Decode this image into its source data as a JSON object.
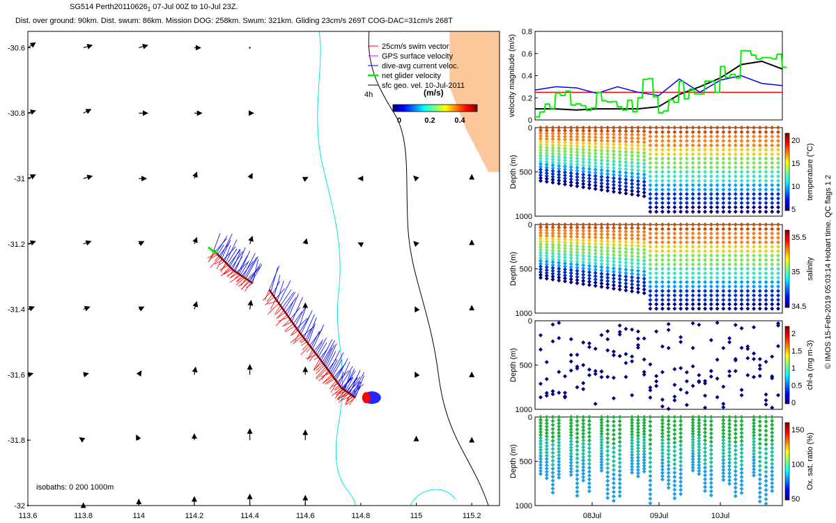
{
  "header": {
    "line1": "SG514 Perth20110626",
    "line1_sub": "1",
    "line1_rest": " 07-Jul 00Z to 10-Jul 23Z.",
    "line2": "Dist. over ground: 90km. Dist. swum: 86km. Mission DOG: 258km. Swum: 321km. Gliding 23cm/s 269T COG-DAC=31cm/s 268T"
  },
  "credit": "© IMOS 15-Feb-2019 05:03:14 Hobart time. QC flags 1  2",
  "colors": {
    "land": "#fcc89b",
    "swim": "#ff0000",
    "gps": "#ff00ff",
    "dac": "#0000ff",
    "net": "#00ee00",
    "geo": "#000000",
    "coast": "#00e5ee",
    "isobath": "#000000"
  },
  "chart_data": [
    {
      "type": "scatter",
      "panel": "map",
      "xlim": [
        113.6,
        115.3
      ],
      "ylim": [
        -32,
        -30.55
      ],
      "x_ticks": [
        "113.6",
        "113.8",
        "114",
        "114.2",
        "114.4",
        "114.6",
        "114.8",
        "115",
        "115.2"
      ],
      "x_tick_values": [
        113.6,
        113.8,
        114,
        114.2,
        114.4,
        114.6,
        114.8,
        115,
        115.2
      ],
      "y_ticks": [
        "-30.6",
        "-30.8",
        "-31",
        "-31.2",
        "-31.4",
        "-31.6",
        "-31.8",
        "-32"
      ],
      "y_tick_values": [
        -30.6,
        -30.8,
        -31,
        -31.2,
        -31.4,
        -31.6,
        -31.8,
        -32
      ],
      "legend": {
        "position": "top-right",
        "items": [
          {
            "label": "25cm/s swim vector",
            "color": "#ff0000"
          },
          {
            "label": "GPS surface velocity",
            "color": "#ff00ff"
          },
          {
            "label": "dive-avg current veloc.",
            "color": "#0000ff"
          },
          {
            "label": "net glider velocity",
            "color": "#00ee00"
          },
          {
            "label": "sfc geo. vel. 10-Jul-2011",
            "color": "#000000"
          }
        ]
      },
      "colorbar": {
        "label": "(m/s)",
        "ticks": [
          "0",
          "0.2",
          "0.4"
        ],
        "tag": "4h"
      },
      "isobath_note": "isobaths: 0   200  1000m",
      "track": [
        {
          "lon": 114.41,
          "lat": -31.32
        },
        {
          "lon": 114.34,
          "lat": -31.28
        },
        {
          "lon": 114.27,
          "lat": -31.22
        }
      ],
      "track2": [
        {
          "lon": 114.47,
          "lat": -31.34
        },
        {
          "lon": 114.57,
          "lat": -31.46
        },
        {
          "lon": 114.66,
          "lat": -31.56
        },
        {
          "lon": 114.73,
          "lat": -31.64
        },
        {
          "lon": 114.78,
          "lat": -31.67
        }
      ],
      "geo_arrows": [
        {
          "lon": 113.6,
          "lat": -30.6,
          "dx": 0.06,
          "dy": 0.04
        },
        {
          "lon": 113.8,
          "lat": -30.6,
          "dx": 0.07,
          "dy": 0.02
        },
        {
          "lon": 114.0,
          "lat": -30.6,
          "dx": 0.07,
          "dy": 0.02
        },
        {
          "lon": 114.2,
          "lat": -30.6,
          "dx": 0.05,
          "dy": 0.0
        },
        {
          "lon": 114.4,
          "lat": -30.6,
          "dx": 0.0,
          "dy": 0.0
        },
        {
          "lon": 113.6,
          "lat": -30.8,
          "dx": 0.06,
          "dy": 0.02
        },
        {
          "lon": 113.8,
          "lat": -30.8,
          "dx": 0.06,
          "dy": 0.03
        },
        {
          "lon": 114.0,
          "lat": -30.8,
          "dx": 0.07,
          "dy": 0.0
        },
        {
          "lon": 114.2,
          "lat": -30.8,
          "dx": 0.06,
          "dy": 0.0
        },
        {
          "lon": 114.4,
          "lat": -30.8,
          "dx": 0.03,
          "dy": 0.0
        },
        {
          "lon": 113.6,
          "lat": -31.0,
          "dx": 0.06,
          "dy": 0.03
        },
        {
          "lon": 113.8,
          "lat": -31.0,
          "dx": 0.07,
          "dy": 0.02
        },
        {
          "lon": 114.0,
          "lat": -31.0,
          "dx": 0.06,
          "dy": 0.0
        },
        {
          "lon": 114.2,
          "lat": -31.0,
          "dx": 0.02,
          "dy": 0.05
        },
        {
          "lon": 114.4,
          "lat": -31.0,
          "dx": 0.02,
          "dy": 0.04
        },
        {
          "lon": 114.6,
          "lat": -31.0,
          "dx": 0.02,
          "dy": 0.01
        },
        {
          "lon": 114.8,
          "lat": -31.0,
          "dx": -0.02,
          "dy": 0.0
        },
        {
          "lon": 115.0,
          "lat": -31.0,
          "dx": -0.02,
          "dy": 0.02
        },
        {
          "lon": 115.2,
          "lat": -31.0,
          "dx": 0.0,
          "dy": 0.03
        },
        {
          "lon": 113.6,
          "lat": -31.2,
          "dx": 0.06,
          "dy": 0.02
        },
        {
          "lon": 113.8,
          "lat": -31.2,
          "dx": 0.06,
          "dy": 0.02
        },
        {
          "lon": 114.0,
          "lat": -31.2,
          "dx": 0.04,
          "dy": 0.02
        },
        {
          "lon": 114.2,
          "lat": -31.2,
          "dx": 0.02,
          "dy": 0.05
        },
        {
          "lon": 114.4,
          "lat": -31.2,
          "dx": 0.02,
          "dy": 0.06
        },
        {
          "lon": 114.6,
          "lat": -31.2,
          "dx": 0.01,
          "dy": 0.04
        },
        {
          "lon": 114.8,
          "lat": -31.2,
          "dx": -0.02,
          "dy": 0.01
        },
        {
          "lon": 115.0,
          "lat": -31.2,
          "dx": -0.02,
          "dy": 0.02
        },
        {
          "lon": 115.2,
          "lat": -31.2,
          "dx": 0.0,
          "dy": 0.03
        },
        {
          "lon": 113.6,
          "lat": -31.4,
          "dx": 0.05,
          "dy": 0.02
        },
        {
          "lon": 113.8,
          "lat": -31.4,
          "dx": 0.05,
          "dy": 0.02
        },
        {
          "lon": 114.0,
          "lat": -31.4,
          "dx": 0.04,
          "dy": 0.02
        },
        {
          "lon": 114.2,
          "lat": -31.4,
          "dx": 0.02,
          "dy": 0.06
        },
        {
          "lon": 114.4,
          "lat": -31.4,
          "dx": 0.01,
          "dy": 0.07
        },
        {
          "lon": 114.6,
          "lat": -31.4,
          "dx": 0.0,
          "dy": 0.05
        },
        {
          "lon": 115.0,
          "lat": -31.4,
          "dx": -0.01,
          "dy": 0.02
        },
        {
          "lon": 115.2,
          "lat": -31.4,
          "dx": 0.0,
          "dy": 0.03
        },
        {
          "lon": 113.6,
          "lat": -31.6,
          "dx": 0.04,
          "dy": 0.01
        },
        {
          "lon": 113.8,
          "lat": -31.6,
          "dx": 0.04,
          "dy": 0.01
        },
        {
          "lon": 114.0,
          "lat": -31.6,
          "dx": 0.02,
          "dy": 0.03
        },
        {
          "lon": 114.2,
          "lat": -31.6,
          "dx": 0.01,
          "dy": 0.06
        },
        {
          "lon": 114.4,
          "lat": -31.6,
          "dx": 0.0,
          "dy": 0.08
        },
        {
          "lon": 114.6,
          "lat": -31.6,
          "dx": 0.0,
          "dy": 0.06
        },
        {
          "lon": 115.0,
          "lat": -31.6,
          "dx": -0.01,
          "dy": 0.02
        },
        {
          "lon": 115.2,
          "lat": -31.6,
          "dx": 0.0,
          "dy": 0.02
        },
        {
          "lon": 113.6,
          "lat": -31.8,
          "dx": 0.0,
          "dy": 0.0
        },
        {
          "lon": 113.8,
          "lat": -31.8,
          "dx": -0.03,
          "dy": 0.02
        },
        {
          "lon": 114.0,
          "lat": -31.8,
          "dx": -0.02,
          "dy": 0.04
        },
        {
          "lon": 114.2,
          "lat": -31.8,
          "dx": 0.0,
          "dy": 0.05
        },
        {
          "lon": 114.4,
          "lat": -31.8,
          "dx": 0.0,
          "dy": 0.09
        },
        {
          "lon": 114.6,
          "lat": -31.8,
          "dx": 0.0,
          "dy": 0.08
        },
        {
          "lon": 115.0,
          "lat": -31.8,
          "dx": 0.0,
          "dy": 0.03
        },
        {
          "lon": 115.2,
          "lat": -31.8,
          "dx": 0.0,
          "dy": 0.02
        },
        {
          "lon": 113.6,
          "lat": -32.0,
          "dx": 0.0,
          "dy": 0.0
        },
        {
          "lon": 113.8,
          "lat": -32.0,
          "dx": 0.0,
          "dy": 0.02
        },
        {
          "lon": 114.0,
          "lat": -32.0,
          "dx": 0.0,
          "dy": 0.05
        },
        {
          "lon": 114.2,
          "lat": -32.0,
          "dx": 0.0,
          "dy": 0.07
        },
        {
          "lon": 114.4,
          "lat": -32.0,
          "dx": 0.0,
          "dy": 0.09
        },
        {
          "lon": 114.6,
          "lat": -32.0,
          "dx": 0.0,
          "dy": 0.08
        }
      ]
    },
    {
      "type": "line",
      "panel": "velocity",
      "ylabel": "velocity magnitude (m/s)",
      "ylim": [
        0,
        0.8
      ],
      "y_ticks": [
        "0",
        "0.2",
        "0.4",
        "0.6",
        "0.8"
      ],
      "series": [
        {
          "color": "#ff0000",
          "values": [
            0.25,
            0.25,
            0.25,
            0.25,
            0.25,
            0.25,
            0.25,
            0.25,
            0.25,
            0.25,
            0.25
          ]
        },
        {
          "color": "#0000ff",
          "values": [
            0.27,
            0.3,
            0.29,
            0.24,
            0.3,
            0.25,
            0.22,
            0.37,
            0.25,
            0.36,
            0.4,
            0.33,
            0.31
          ]
        },
        {
          "color": "#000000",
          "values": [
            0.1,
            0.1,
            0.09,
            0.1,
            0.1,
            0.1,
            0.12,
            0.23,
            0.3,
            0.38,
            0.5,
            0.53,
            0.46
          ]
        },
        {
          "color": "#00ff00",
          "values": [
            0.05,
            0.2,
            0.1,
            0.25,
            0.15,
            0.3,
            0.1,
            0.25,
            0.3,
            0.42,
            0.55,
            0.5,
            0.52
          ]
        }
      ]
    },
    {
      "type": "scatter",
      "panel": "temperature",
      "ylabel": "Depth (m)",
      "clabel": "temperature (°C)",
      "y_ticks": [
        "0",
        "500",
        "1000"
      ],
      "c_ticks": [
        "5",
        "10",
        "15",
        "20"
      ]
    },
    {
      "type": "scatter",
      "panel": "salinity",
      "ylabel": "Depth (m)",
      "clabel": "salinity",
      "y_ticks": [
        "0",
        "500",
        "1000"
      ],
      "c_ticks": [
        "34.5",
        "35",
        "35.5"
      ]
    },
    {
      "type": "scatter",
      "panel": "chla",
      "ylabel": "Depth (m)",
      "clabel": "chl-a (mg m-3)",
      "y_ticks": [
        "0",
        "500",
        "1000"
      ],
      "c_ticks": [
        "0",
        "0.5",
        "1",
        "1.5",
        "2"
      ]
    },
    {
      "type": "scatter",
      "panel": "oxygen",
      "ylabel": "Depth (m)",
      "clabel": "Ox. sat. ratio (%)",
      "y_ticks": [
        "0",
        "500",
        "1000"
      ],
      "c_ticks": [
        "50",
        "100",
        "150"
      ],
      "x_ticks": [
        "08Jul",
        "09Jul",
        "10Jul"
      ]
    }
  ]
}
